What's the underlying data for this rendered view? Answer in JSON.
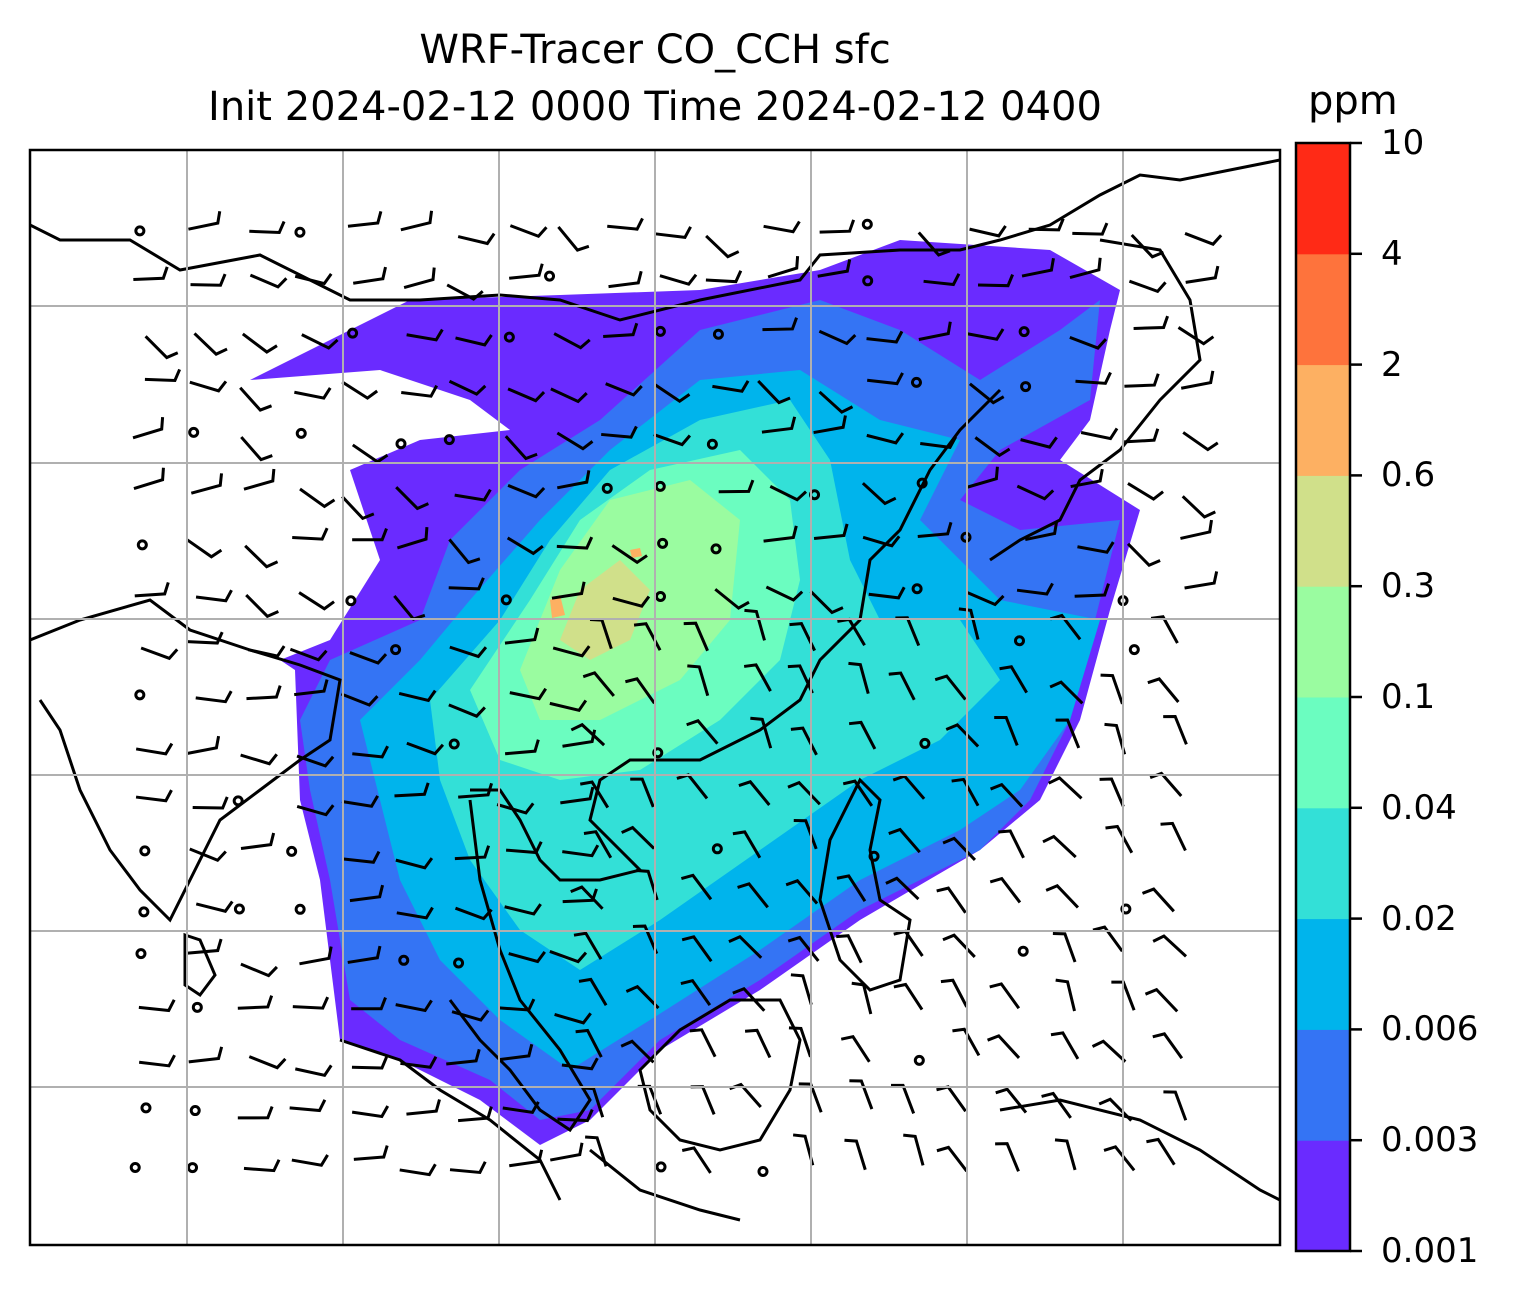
{
  "chart_data": {
    "type": "heatmap",
    "title": "WRF-Tracer CO_CCH sfc",
    "subtitle": "Init 2024-02-12 0000 Time 2024-02-12 0400",
    "colorbar": {
      "label": "ppm",
      "levels": [
        "0.001",
        "0.003",
        "0.006",
        "0.02",
        "0.04",
        "0.1",
        "0.3",
        "0.6",
        "2",
        "4",
        "10"
      ],
      "colors": [
        "#6a2bff",
        "#3474f4",
        "#00b4ec",
        "#33e0d7",
        "#6bfdc0",
        "#9afca0",
        "#d0e08a",
        "#fdb062",
        "#fe733c",
        "#ff2a16"
      ]
    },
    "overlays": [
      "coastlines",
      "gridlines",
      "wind barbs"
    ],
    "grid": true
  }
}
